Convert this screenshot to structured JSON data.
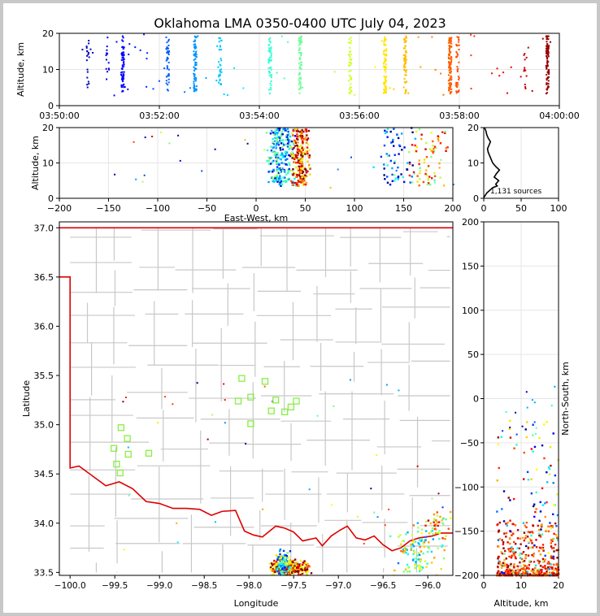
{
  "title": "Oklahoma LMA 0350-0400 UTC July 04, 2023",
  "colors": {
    "state_border": "#dd0000",
    "county_lines": "#c8c8c8",
    "station_marker": "#88ee44",
    "density_line": "#000000",
    "bg": "#ffffff"
  },
  "chart_data": [
    {
      "id": "time-height",
      "type": "scatter",
      "ylabel": "Altitude, km",
      "xlabel": "",
      "ylim": [
        0,
        20
      ],
      "yticks": [
        0,
        10,
        20
      ],
      "xticks": [
        "03:50:00",
        "03:52:00",
        "03:54:00",
        "03:56:00",
        "03:58:00",
        "04:00:00"
      ],
      "xlim_minutes": [
        0,
        10
      ],
      "columns": [
        {
          "t": 0.55,
          "zmin": 3.5,
          "zmax": 19.5,
          "n": 18
        },
        {
          "t": 0.95,
          "zmin": 3.5,
          "zmax": 19.5,
          "n": 14
        },
        {
          "t": 1.25,
          "zmin": 4,
          "zmax": 19.5,
          "n": 60
        },
        {
          "t": 2.15,
          "zmin": 4,
          "zmax": 19.5,
          "n": 40
        },
        {
          "t": 2.7,
          "zmin": 4,
          "zmax": 19.5,
          "n": 70
        },
        {
          "t": 3.2,
          "zmin": 4,
          "zmax": 19.5,
          "n": 30
        },
        {
          "t": 4.2,
          "zmin": 3.5,
          "zmax": 19.5,
          "n": 45
        },
        {
          "t": 4.8,
          "zmin": 3.5,
          "zmax": 19.5,
          "n": 60
        },
        {
          "t": 5.8,
          "zmin": 3.5,
          "zmax": 19.5,
          "n": 40
        },
        {
          "t": 6.5,
          "zmin": 3.5,
          "zmax": 19.5,
          "n": 70
        },
        {
          "t": 6.9,
          "zmin": 3.5,
          "zmax": 19.5,
          "n": 60
        },
        {
          "t": 7.8,
          "zmin": 3.5,
          "zmax": 19.5,
          "n": 110
        },
        {
          "t": 7.95,
          "zmin": 3.5,
          "zmax": 19.5,
          "n": 40
        },
        {
          "t": 9.3,
          "zmin": 3.5,
          "zmax": 19.5,
          "n": 12
        },
        {
          "t": 9.75,
          "zmin": 3.5,
          "zmax": 19.5,
          "n": 90
        }
      ]
    },
    {
      "id": "ew-height",
      "type": "scatter",
      "xlabel": "East-West, km",
      "ylabel": "Altitude, km",
      "xlim": [
        -200,
        200
      ],
      "ylim": [
        0,
        20
      ],
      "xticks": [
        -200,
        -150,
        -100,
        -50,
        0,
        50,
        100,
        150,
        200
      ],
      "yticks": [
        0,
        10,
        20
      ]
    },
    {
      "id": "altitude-histogram",
      "type": "line",
      "xlim": [
        0,
        100
      ],
      "ylim": [
        0,
        20
      ],
      "xticks": [
        0,
        50,
        100
      ],
      "yticks": [
        0,
        10,
        20
      ],
      "annotation": "1,131 sources",
      "profile": [
        [
          0,
          0.2
        ],
        [
          1,
          0.5
        ],
        [
          4,
          1.5
        ],
        [
          12,
          3.0
        ],
        [
          18,
          3.5
        ],
        [
          16,
          4.0
        ],
        [
          20,
          5.0
        ],
        [
          14,
          6.0
        ],
        [
          17,
          7.0
        ],
        [
          21,
          8.0
        ],
        [
          16,
          9.0
        ],
        [
          12,
          10.0
        ],
        [
          10,
          11.0
        ],
        [
          8,
          12.0
        ],
        [
          6,
          13.0
        ],
        [
          5,
          14.0
        ],
        [
          7,
          15.0
        ],
        [
          9,
          16.0
        ],
        [
          6,
          17.0
        ],
        [
          4,
          18.0
        ],
        [
          3,
          19.0
        ],
        [
          1,
          20.0
        ]
      ]
    },
    {
      "id": "plan-view",
      "type": "scatter",
      "xlabel": "Longitude",
      "ylabel": "Latitude",
      "xlim": [
        -100.12,
        -95.72
      ],
      "ylim": [
        33.47,
        37.06
      ],
      "xticks": [
        -100.0,
        -99.5,
        -99.0,
        -98.5,
        -98.0,
        -97.5,
        -97.0,
        -96.5,
        -96.0
      ],
      "yticks": [
        33.5,
        34.0,
        34.5,
        35.0,
        35.5,
        36.0,
        36.5,
        37.0
      ],
      "xtick_labels": [
        "−100.0",
        "−99.5",
        "−99.0",
        "−98.5",
        "−98.0",
        "−97.5",
        "−97.0",
        "−96.5",
        "−96.0"
      ],
      "stations": [
        [
          -98.08,
          35.47
        ],
        [
          -97.82,
          35.44
        ],
        [
          -98.12,
          35.24
        ],
        [
          -97.98,
          35.28
        ],
        [
          -97.7,
          35.25
        ],
        [
          -97.75,
          35.14
        ],
        [
          -97.6,
          35.13
        ],
        [
          -97.53,
          35.18
        ],
        [
          -97.47,
          35.24
        ],
        [
          -97.98,
          35.01
        ],
        [
          -99.43,
          34.97
        ],
        [
          -99.36,
          34.86
        ],
        [
          -99.51,
          34.76
        ],
        [
          -99.35,
          34.7
        ],
        [
          -99.12,
          34.71
        ],
        [
          -99.48,
          34.6
        ],
        [
          -99.44,
          34.51
        ]
      ]
    },
    {
      "id": "ns-height",
      "type": "scatter",
      "xlabel": "Altitude, km",
      "ylabel": "North-South, km",
      "xlim": [
        0,
        20
      ],
      "ylim": [
        -200,
        200
      ],
      "xticks": [
        0,
        10,
        20
      ],
      "yticks": [
        -200,
        -150,
        -100,
        -50,
        0,
        50,
        100,
        150,
        200
      ]
    }
  ]
}
